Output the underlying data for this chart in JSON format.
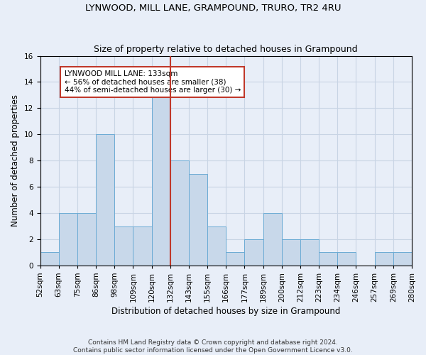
{
  "title": "LYNWOOD, MILL LANE, GRAMPOUND, TRURO, TR2 4RU",
  "subtitle": "Size of property relative to detached houses in Grampound",
  "xlabel": "Distribution of detached houses by size in Grampound",
  "ylabel": "Number of detached properties",
  "bin_labels": [
    "52sqm",
    "63sqm",
    "75sqm",
    "86sqm",
    "98sqm",
    "109sqm",
    "120sqm",
    "132sqm",
    "143sqm",
    "155sqm",
    "166sqm",
    "177sqm",
    "189sqm",
    "200sqm",
    "212sqm",
    "223sqm",
    "234sqm",
    "246sqm",
    "257sqm",
    "269sqm",
    "280sqm"
  ],
  "counts": [
    1,
    4,
    4,
    10,
    3,
    3,
    13,
    8,
    7,
    3,
    1,
    2,
    4,
    2,
    2,
    1,
    1,
    0,
    1,
    1
  ],
  "bar_color": "#c8d8ea",
  "bar_edge_color": "#6aaad4",
  "vline_index": 7,
  "vline_color": "#c0392b",
  "annotation_text": "LYNWOOD MILL LANE: 133sqm\n← 56% of detached houses are smaller (38)\n44% of semi-detached houses are larger (30) →",
  "annotation_box_color": "white",
  "annotation_box_edge": "#c0392b",
  "footnote1": "Contains HM Land Registry data © Crown copyright and database right 2024.",
  "footnote2": "Contains public sector information licensed under the Open Government Licence v3.0.",
  "grid_color": "#c8d4e4",
  "background_color": "#e8eef8",
  "ylim": [
    0,
    16
  ],
  "yticks": [
    0,
    2,
    4,
    6,
    8,
    10,
    12,
    14,
    16
  ],
  "title_fontsize": 9.5,
  "subtitle_fontsize": 9,
  "axis_label_fontsize": 8.5,
  "tick_fontsize": 7.5,
  "annot_fontsize": 7.5,
  "footnote_fontsize": 6.5
}
